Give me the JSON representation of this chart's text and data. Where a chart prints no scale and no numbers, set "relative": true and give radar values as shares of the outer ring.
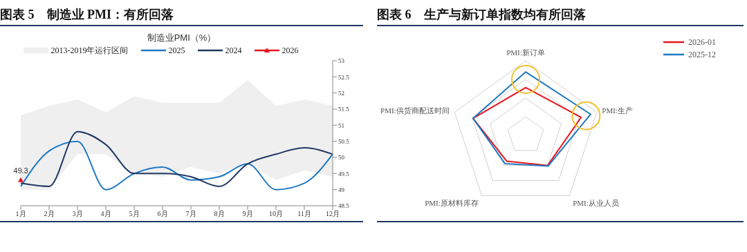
{
  "chart_data": [
    {
      "type": "line",
      "title": "图表 5　制造业 PMI：有所回落",
      "subtitle": "制造业PMI（%）",
      "categories": [
        "1月",
        "2月",
        "3月",
        "4月",
        "5月",
        "6月",
        "7月",
        "8月",
        "9月",
        "10月",
        "11月",
        "12月"
      ],
      "series": [
        {
          "name": "2013-2019年运行区间",
          "type": "area",
          "color": "#efefef",
          "values": [
            51.3,
            51.6,
            51.8,
            51.4,
            51.9,
            51.7,
            51.7,
            51.7,
            52.4,
            51.6,
            51.8,
            51.6
          ]
        },
        {
          "type": "area",
          "color": "#ffffff",
          "values": [
            49.0,
            49.0,
            50.1,
            50.1,
            49.5,
            49.4,
            49.7,
            49.5,
            49.8,
            49.3,
            49.6,
            49.4
          ]
        },
        {
          "name": "2025",
          "type": "line",
          "color": "#1f78c1",
          "values": [
            49.1,
            50.2,
            50.5,
            49.0,
            49.5,
            49.7,
            49.3,
            49.4,
            49.8,
            49.0,
            49.2,
            50.1
          ]
        },
        {
          "name": "2024",
          "type": "line",
          "color": "#203864",
          "values": [
            49.2,
            49.1,
            50.8,
            50.4,
            49.5,
            49.5,
            49.4,
            49.1,
            49.8,
            50.1,
            50.3,
            50.1
          ]
        },
        {
          "name": "2026",
          "type": "line",
          "color": "#e8141c",
          "marker": "triangle",
          "values": [
            49.3,
            null,
            null,
            null,
            null,
            null,
            null,
            null,
            null,
            null,
            null,
            null
          ],
          "value_labels": [
            "49.3",
            null,
            null,
            null,
            null,
            null,
            null,
            null,
            null,
            null,
            null,
            null
          ]
        }
      ],
      "ylim": [
        48.5,
        53
      ],
      "yticks": [
        48.5,
        49,
        49.5,
        50,
        50.5,
        51,
        51.5,
        52,
        52.5,
        53
      ],
      "legend": "top",
      "line_style": "solid"
    },
    {
      "type": "radar",
      "title": "图表 6　生产与新订单指数均有所回落",
      "categories": [
        "PMI:新订单",
        "PMI:生产",
        "PMI:从业人员",
        "PMI:原材料库存",
        "PMI:供货商配送时间"
      ],
      "relative": true,
      "grid": true,
      "legend": "top right",
      "series": [
        {
          "name": "2026-01",
          "color": "#e8141c",
          "values": [
            0.64,
            0.78,
            0.5,
            0.43,
            0.74
          ]
        },
        {
          "name": "2025-12",
          "color": "#1f78c1",
          "values": [
            0.85,
            0.915,
            0.51,
            0.47,
            0.74
          ]
        }
      ]
    }
  ]
}
